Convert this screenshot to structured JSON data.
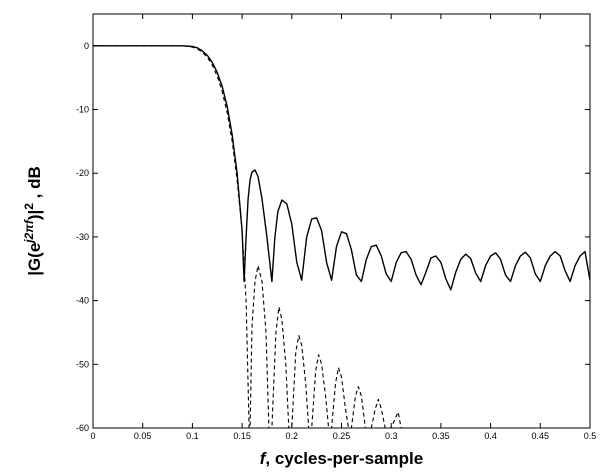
{
  "chart_data": {
    "type": "line",
    "title": "",
    "xlabel_var": "f",
    "xlabel_rest": ", cycles-per-sample",
    "ylabel_parts": [
      "|G(e",
      "j2πf",
      ")|",
      "2",
      " , dB"
    ],
    "xlim": [
      0,
      0.5
    ],
    "ylim": [
      -60,
      5
    ],
    "x_ticks": [
      0,
      0.05,
      0.1,
      0.15,
      0.2,
      0.25,
      0.3,
      0.35,
      0.4,
      0.45,
      0.5
    ],
    "x_tick_labels": [
      "0",
      "0.05",
      "0.1",
      "0.15",
      "0.2",
      "0.25",
      "0.3",
      "0.35",
      "0.4",
      "0.45",
      "0.5"
    ],
    "y_ticks": [
      0,
      -10,
      -20,
      -30,
      -40,
      -50,
      -60
    ],
    "y_tick_labels": [
      "0",
      "-10",
      "-20",
      "-30",
      "-40",
      "-50",
      "-60"
    ],
    "grid": false,
    "legend": "none",
    "series": [
      {
        "style": "solid",
        "color": "#000000",
        "x": [
          0,
          0.05,
          0.09,
          0.1,
          0.105,
          0.11,
          0.115,
          0.12,
          0.125,
          0.13,
          0.135,
          0.14,
          0.145,
          0.15,
          0.152,
          0.154,
          0.156,
          0.158,
          0.16,
          0.163,
          0.166,
          0.17,
          0.175,
          0.18,
          0.183,
          0.186,
          0.19,
          0.195,
          0.2,
          0.205,
          0.21,
          0.215,
          0.22,
          0.225,
          0.23,
          0.235,
          0.24,
          0.245,
          0.25,
          0.255,
          0.26,
          0.265,
          0.27,
          0.275,
          0.28,
          0.285,
          0.29,
          0.295,
          0.3,
          0.305,
          0.31,
          0.315,
          0.32,
          0.325,
          0.33,
          0.335,
          0.34,
          0.345,
          0.35,
          0.355,
          0.36,
          0.365,
          0.37,
          0.375,
          0.38,
          0.385,
          0.39,
          0.395,
          0.4,
          0.405,
          0.41,
          0.415,
          0.42,
          0.425,
          0.43,
          0.435,
          0.44,
          0.445,
          0.45,
          0.455,
          0.46,
          0.465,
          0.47,
          0.475,
          0.48,
          0.485,
          0.49,
          0.495,
          0.5
        ],
        "y": [
          0,
          0,
          0,
          -0.1,
          -0.3,
          -0.8,
          -1.5,
          -2.6,
          -4.2,
          -6.4,
          -9.5,
          -14,
          -20,
          -29,
          -37,
          -30,
          -24,
          -21,
          -19.8,
          -19.5,
          -20.5,
          -24,
          -30,
          -37,
          -30,
          -26,
          -24.2,
          -24.8,
          -28,
          -34,
          -36.8,
          -30,
          -27.2,
          -27,
          -29,
          -34,
          -36.8,
          -31.5,
          -29.2,
          -29.5,
          -32,
          -36,
          -37,
          -33.5,
          -31.5,
          -31.3,
          -33,
          -35.8,
          -37,
          -34,
          -32.5,
          -32.3,
          -33.5,
          -36,
          -37.5,
          -35.5,
          -33.3,
          -33,
          -34,
          -36.6,
          -38.3,
          -35.5,
          -33.5,
          -32.7,
          -33.4,
          -35.7,
          -37,
          -34.5,
          -33,
          -32.5,
          -33.5,
          -36,
          -37,
          -34.5,
          -33,
          -32.4,
          -33.3,
          -35.8,
          -37,
          -34.5,
          -33,
          -32.3,
          -33,
          -35.3,
          -37,
          -34.5,
          -33,
          -32.3,
          -36.8
        ]
      },
      {
        "style": "dashed",
        "color": "#000000",
        "x": [
          0,
          0.05,
          0.09,
          0.1,
          0.105,
          0.11,
          0.115,
          0.12,
          0.125,
          0.13,
          0.135,
          0.14,
          0.145,
          0.15,
          0.154,
          0.157,
          0.158,
          0.16,
          0.163,
          0.166,
          0.17,
          0.174,
          0.177,
          0.18,
          0.184,
          0.187,
          0.19,
          0.194,
          0.197,
          0.2,
          0.204,
          0.207,
          0.21,
          0.214,
          0.217,
          0.22,
          0.224,
          0.227,
          0.23,
          0.234,
          0.237,
          0.24,
          0.244,
          0.247,
          0.25,
          0.254,
          0.257,
          0.26,
          0.264,
          0.267,
          0.27,
          0.274,
          0.277,
          0.28,
          0.284,
          0.287,
          0.29,
          0.294,
          0.297,
          0.3,
          0.304,
          0.307,
          0.31
        ],
        "y": [
          0,
          0,
          0,
          -0.2,
          -0.5,
          -1,
          -1.8,
          -3,
          -4.8,
          -7.2,
          -10.5,
          -15,
          -21,
          -29,
          -40,
          -60,
          -60,
          -44,
          -37,
          -34.5,
          -37,
          -45,
          -60,
          -60,
          -45,
          -41,
          -43,
          -50,
          -60,
          -60,
          -48,
          -45.5,
          -47,
          -53,
          -60,
          -60,
          -51,
          -48.5,
          -50,
          -55,
          -60,
          -60,
          -53,
          -50.5,
          -52,
          -57,
          -60,
          -60,
          -55,
          -53.5,
          -55,
          -60,
          -60,
          -60,
          -57,
          -55.5,
          -57,
          -60,
          -60,
          -60,
          -58.5,
          -57.5,
          -60
        ]
      }
    ]
  }
}
